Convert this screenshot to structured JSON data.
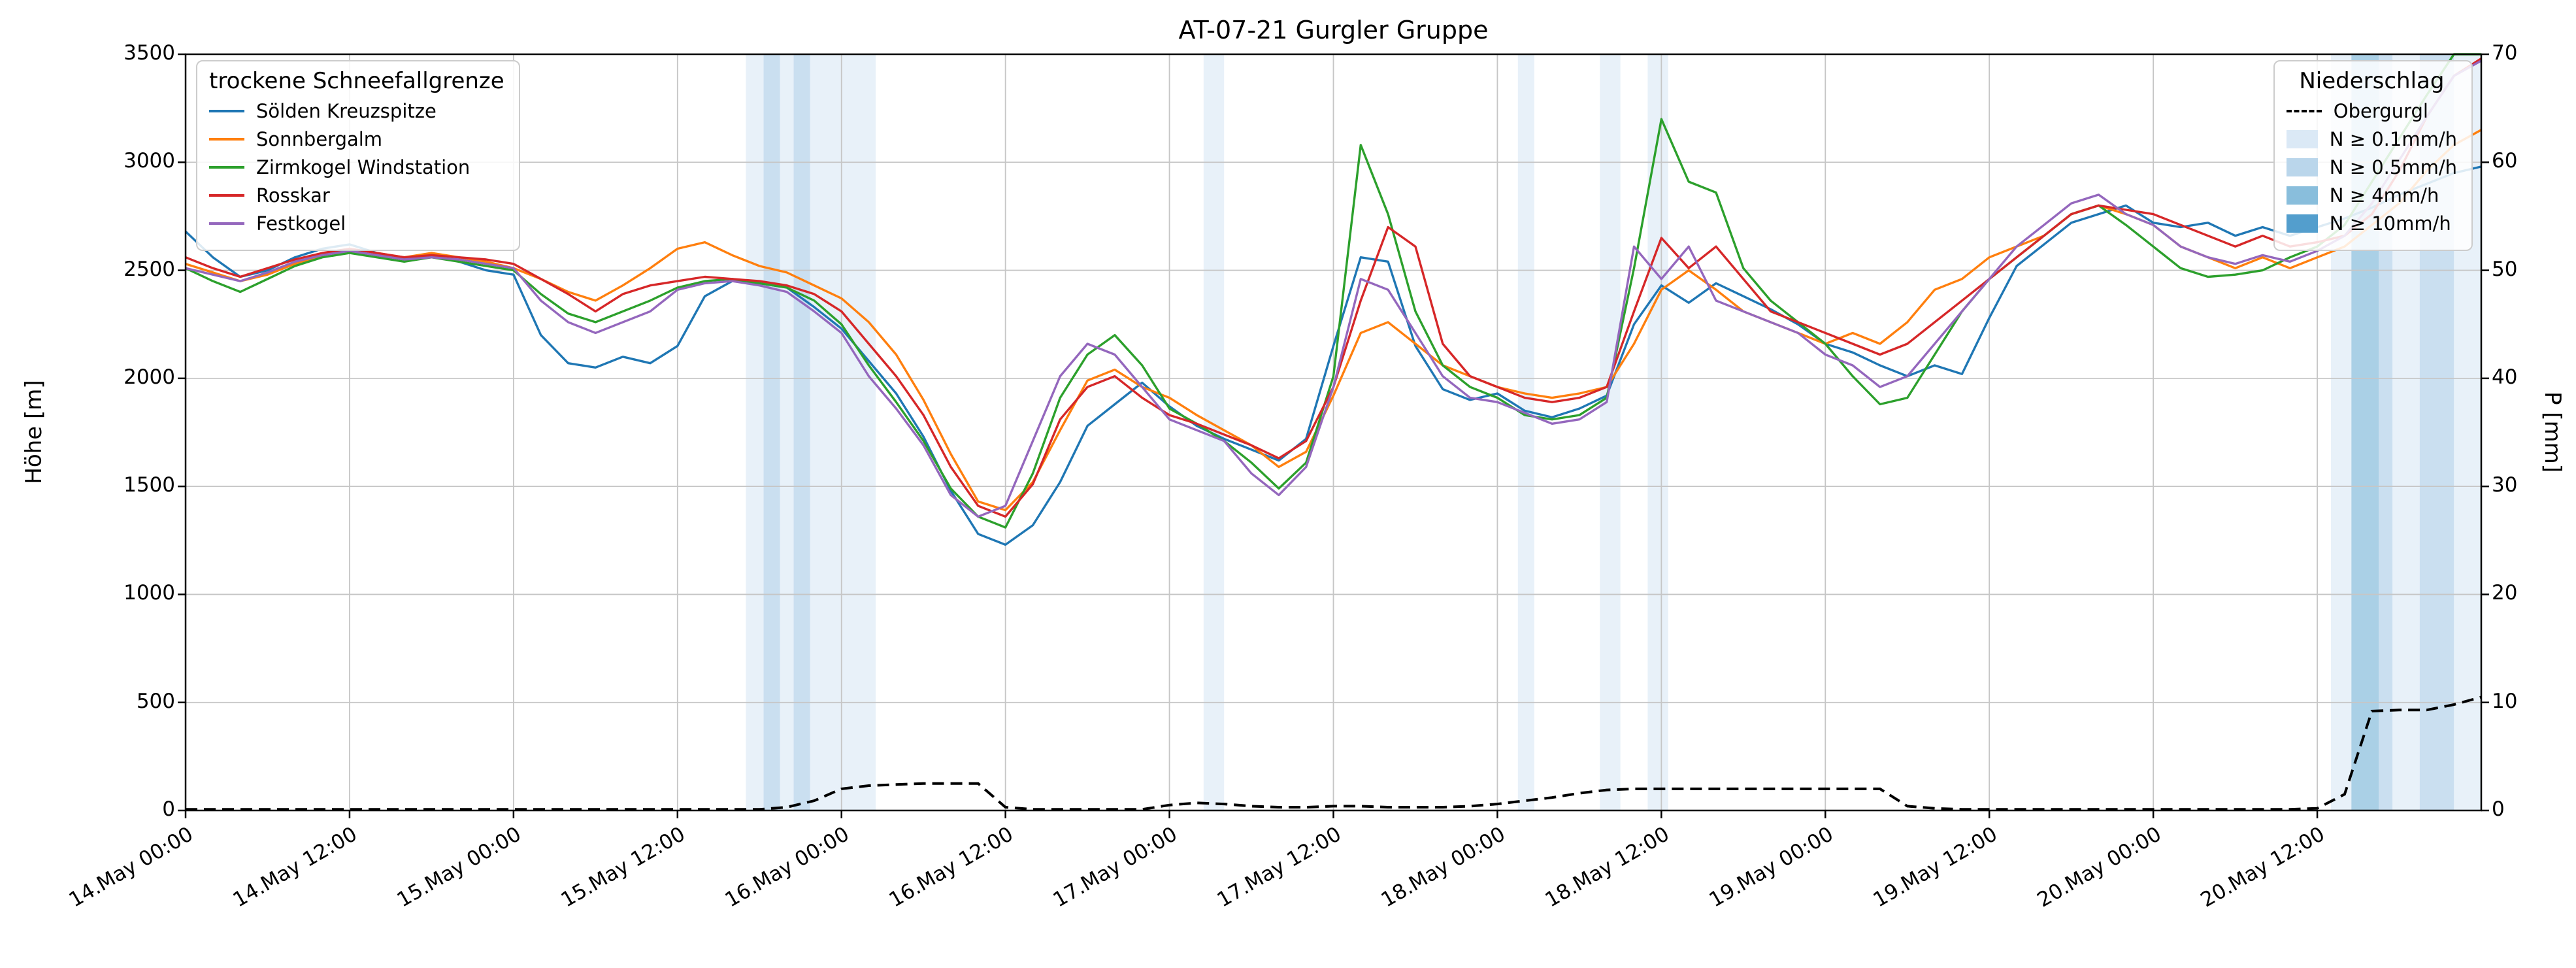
{
  "title": "AT-07-21 Gurgler Gruppe",
  "axes": {
    "y_left_label": "Höhe [m]",
    "y_right_label": "P [mm]",
    "y_left_ticks": [
      0,
      500,
      1000,
      1500,
      2000,
      2500,
      3000,
      3500
    ],
    "y_right_ticks": [
      0,
      10,
      20,
      30,
      40,
      50,
      60,
      70
    ],
    "x_tick_hours": [
      0,
      12,
      24,
      36,
      48,
      60,
      72,
      84,
      96,
      108,
      120,
      132,
      144,
      156
    ],
    "x_tick_labels": [
      "14.May 00:00",
      "14.May 12:00",
      "15.May 00:00",
      "15.May 12:00",
      "16.May 00:00",
      "16.May 12:00",
      "17.May 00:00",
      "17.May 12:00",
      "18.May 00:00",
      "18.May 12:00",
      "19.May 00:00",
      "19.May 12:00",
      "20.May 00:00",
      "20.May 12:00"
    ]
  },
  "legends": {
    "snowline": {
      "title": "trockene Schneefallgrenze"
    },
    "precip": {
      "title": "Niederschlag",
      "station_label": "Obergurgl",
      "intensity_labels": [
        "N ≥ 0.1mm/h",
        "N ≥ 0.5mm/h",
        "N ≥ 4mm/h",
        "N ≥ 10mm/h"
      ]
    }
  },
  "chart_data": {
    "type": "line",
    "title": "AT-07-21 Gurgler Gruppe",
    "x_unit": "hours since 14 May 00:00",
    "x_range": [
      0,
      168
    ],
    "y_left_range": [
      0,
      3500
    ],
    "y_right_range": [
      0,
      70
    ],
    "grid": true,
    "x_hours": [
      0,
      2,
      4,
      6,
      8,
      10,
      12,
      14,
      16,
      18,
      20,
      22,
      24,
      26,
      28,
      30,
      32,
      34,
      36,
      38,
      40,
      42,
      44,
      46,
      48,
      50,
      52,
      54,
      56,
      58,
      60,
      62,
      64,
      66,
      68,
      70,
      72,
      74,
      76,
      78,
      80,
      82,
      84,
      86,
      88,
      90,
      92,
      94,
      96,
      98,
      100,
      102,
      104,
      106,
      108,
      110,
      112,
      114,
      116,
      118,
      120,
      122,
      124,
      126,
      128,
      130,
      132,
      134,
      136,
      138,
      140,
      142,
      144,
      146,
      148,
      150,
      152,
      154,
      156,
      158,
      160,
      162,
      164,
      166,
      168
    ],
    "series": [
      {
        "id": "soelden-kreuzspitze",
        "name": "Sölden Kreuzspitze",
        "color": "#1f77b4",
        "axis": "left",
        "values": [
          2680,
          2560,
          2470,
          2500,
          2560,
          2600,
          2620,
          2580,
          2550,
          2570,
          2540,
          2500,
          2480,
          2200,
          2070,
          2050,
          2100,
          2070,
          2150,
          2380,
          2450,
          2440,
          2420,
          2330,
          2230,
          2080,
          1930,
          1730,
          1480,
          1280,
          1230,
          1320,
          1520,
          1780,
          1880,
          1980,
          1870,
          1780,
          1720,
          1670,
          1620,
          1720,
          2150,
          2560,
          2540,
          2150,
          1950,
          1900,
          1930,
          1850,
          1820,
          1860,
          1920,
          2250,
          2430,
          2350,
          2440,
          2380,
          2320,
          2250,
          2160,
          2120,
          2060,
          2010,
          2060,
          2020,
          2280,
          2520,
          2620,
          2720,
          2760,
          2800,
          2720,
          2700,
          2720,
          2660,
          2700,
          2660,
          2700,
          2740,
          2790,
          2850,
          2900,
          2950,
          2980
        ]
      },
      {
        "id": "sonnbergalm",
        "name": "Sonnbergalm",
        "color": "#ff7f0e",
        "axis": "left",
        "values": [
          2530,
          2490,
          2450,
          2480,
          2530,
          2570,
          2600,
          2580,
          2560,
          2580,
          2560,
          2540,
          2510,
          2460,
          2400,
          2360,
          2430,
          2510,
          2600,
          2630,
          2570,
          2520,
          2490,
          2430,
          2370,
          2260,
          2110,
          1900,
          1650,
          1430,
          1390,
          1520,
          1760,
          1990,
          2040,
          1960,
          1910,
          1830,
          1760,
          1690,
          1590,
          1660,
          1920,
          2210,
          2260,
          2160,
          2060,
          2010,
          1960,
          1930,
          1910,
          1930,
          1960,
          2160,
          2410,
          2500,
          2410,
          2310,
          2260,
          2210,
          2160,
          2210,
          2160,
          2260,
          2410,
          2460,
          2560,
          2610,
          2660,
          2760,
          2800,
          2760,
          2710,
          2610,
          2560,
          2510,
          2560,
          2510,
          2560,
          2610,
          2710,
          2810,
          2960,
          3080,
          3150
        ]
      },
      {
        "id": "zirmkogel-windstation",
        "name": "Zirmkogel Windstation",
        "color": "#2ca02c",
        "axis": "left",
        "values": [
          2510,
          2450,
          2400,
          2460,
          2520,
          2560,
          2580,
          2560,
          2540,
          2560,
          2540,
          2520,
          2500,
          2390,
          2300,
          2260,
          2310,
          2360,
          2420,
          2450,
          2460,
          2440,
          2420,
          2360,
          2250,
          2060,
          1890,
          1710,
          1490,
          1360,
          1310,
          1560,
          1910,
          2110,
          2200,
          2060,
          1860,
          1790,
          1710,
          1610,
          1490,
          1610,
          2010,
          3080,
          2760,
          2310,
          2060,
          1960,
          1910,
          1830,
          1810,
          1830,
          1910,
          2510,
          3200,
          2910,
          2860,
          2510,
          2360,
          2260,
          2160,
          2010,
          1880,
          1910,
          2110,
          2310,
          2460,
          2560,
          2660,
          2760,
          2800,
          2710,
          2610,
          2510,
          2470,
          2480,
          2500,
          2560,
          2610,
          2710,
          2910,
          3110,
          3310,
          3500,
          3500
        ]
      },
      {
        "id": "rosskar",
        "name": "Rosskar",
        "color": "#d62728",
        "axis": "left",
        "values": [
          2560,
          2510,
          2470,
          2510,
          2550,
          2580,
          2600,
          2580,
          2560,
          2570,
          2560,
          2550,
          2530,
          2460,
          2390,
          2310,
          2390,
          2430,
          2450,
          2470,
          2460,
          2450,
          2430,
          2390,
          2310,
          2160,
          2010,
          1830,
          1590,
          1410,
          1360,
          1510,
          1810,
          1960,
          2010,
          1910,
          1830,
          1790,
          1740,
          1690,
          1630,
          1710,
          1960,
          2360,
          2700,
          2610,
          2160,
          2010,
          1960,
          1910,
          1890,
          1910,
          1960,
          2310,
          2650,
          2510,
          2610,
          2460,
          2310,
          2260,
          2210,
          2160,
          2110,
          2160,
          2260,
          2360,
          2460,
          2560,
          2660,
          2760,
          2800,
          2780,
          2760,
          2710,
          2660,
          2610,
          2660,
          2610,
          2630,
          2660,
          2760,
          2960,
          3210,
          3400,
          3480
        ]
      },
      {
        "id": "festkogel",
        "name": "Festkogel",
        "color": "#9467bd",
        "axis": "left",
        "values": [
          2510,
          2480,
          2450,
          2490,
          2540,
          2570,
          2590,
          2570,
          2550,
          2560,
          2550,
          2530,
          2510,
          2360,
          2260,
          2210,
          2260,
          2310,
          2410,
          2440,
          2450,
          2430,
          2400,
          2310,
          2210,
          2010,
          1860,
          1690,
          1460,
          1360,
          1410,
          1710,
          2010,
          2160,
          2110,
          1960,
          1810,
          1760,
          1710,
          1560,
          1460,
          1590,
          1960,
          2460,
          2410,
          2210,
          2010,
          1910,
          1890,
          1840,
          1790,
          1810,
          1890,
          2610,
          2460,
          2610,
          2360,
          2310,
          2260,
          2210,
          2110,
          2060,
          1960,
          2010,
          2160,
          2310,
          2460,
          2610,
          2710,
          2810,
          2850,
          2760,
          2710,
          2610,
          2560,
          2530,
          2570,
          2540,
          2590,
          2660,
          2810,
          3010,
          3210,
          3400,
          3470
        ]
      }
    ],
    "precip_line": {
      "id": "obergurgl",
      "name": "Obergurgl",
      "color": "#000000",
      "style": "dashed",
      "axis": "right",
      "values": [
        0.1,
        0.1,
        0.1,
        0.1,
        0.1,
        0.1,
        0.1,
        0.1,
        0.1,
        0.1,
        0.1,
        0.1,
        0.1,
        0.1,
        0.1,
        0.1,
        0.1,
        0.1,
        0.1,
        0.1,
        0.1,
        0.1,
        0.3,
        0.9,
        2.0,
        2.3,
        2.4,
        2.5,
        2.5,
        2.5,
        0.3,
        0.1,
        0.1,
        0.1,
        0.1,
        0.1,
        0.5,
        0.7,
        0.6,
        0.4,
        0.3,
        0.3,
        0.4,
        0.4,
        0.3,
        0.3,
        0.3,
        0.4,
        0.6,
        0.9,
        1.2,
        1.6,
        1.9,
        2.0,
        2.0,
        2.0,
        2.0,
        2.0,
        2.0,
        2.0,
        2.0,
        2.0,
        2.0,
        0.4,
        0.2,
        0.1,
        0.1,
        0.1,
        0.1,
        0.1,
        0.1,
        0.1,
        0.1,
        0.1,
        0.1,
        0.1,
        0.1,
        0.1,
        0.2,
        1.5,
        9.2,
        9.3,
        9.3,
        9.8,
        10.5
      ]
    },
    "band_colors": {
      "0.1": "#dbe9f6",
      "0.5": "#bad6eb",
      "4": "#89bedc",
      "10": "#539ecd"
    },
    "precip_bands": [
      {
        "from": 41.0,
        "to": 50.5,
        "level": "0.1"
      },
      {
        "from": 42.3,
        "to": 43.5,
        "level": "0.5"
      },
      {
        "from": 44.5,
        "to": 45.7,
        "level": "0.5"
      },
      {
        "from": 74.5,
        "to": 76.0,
        "level": "0.1"
      },
      {
        "from": 97.5,
        "to": 98.7,
        "level": "0.1"
      },
      {
        "from": 103.5,
        "to": 105.0,
        "level": "0.1"
      },
      {
        "from": 107.0,
        "to": 108.5,
        "level": "0.1"
      },
      {
        "from": 157.0,
        "to": 168.0,
        "level": "0.1"
      },
      {
        "from": 158.5,
        "to": 160.5,
        "level": "4"
      },
      {
        "from": 160.5,
        "to": 161.5,
        "level": "0.5"
      },
      {
        "from": 163.5,
        "to": 166.0,
        "level": "0.5"
      }
    ]
  }
}
